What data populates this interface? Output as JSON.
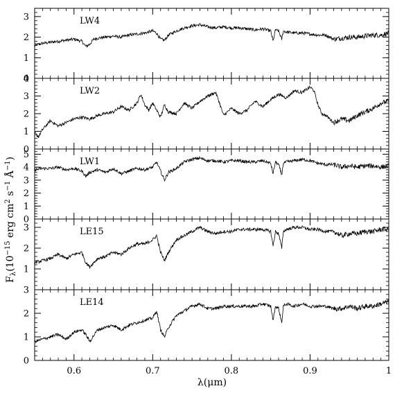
{
  "chart_data": {
    "type": "line",
    "layout": "stacked-panels",
    "x_range": [
      0.55,
      1.0
    ],
    "x_ticks": [
      0.6,
      0.7,
      0.8,
      0.9,
      1.0
    ],
    "x_tick_labels": [
      "0.6",
      "0.7",
      "0.8",
      "0.9",
      "1"
    ],
    "xlabel": "λ(μm)",
    "ylabel": {
      "prefix": "F",
      "subscript": "λ",
      "open": "(10",
      "exp1": "−15",
      "unit1": " erg cm",
      "exp2": "2",
      "unit2": " s",
      "exp3": "−1",
      "unit3": " Å",
      "exp4": "−1",
      "close": ")"
    },
    "panels": [
      {
        "label": "LW4",
        "ylim": [
          0,
          3.4
        ],
        "y_ticks": [
          0,
          1,
          2,
          3
        ],
        "y_tick_labels": [
          "0",
          "1",
          "2",
          "3"
        ],
        "x": [
          0.55,
          0.56,
          0.57,
          0.58,
          0.59,
          0.6,
          0.61,
          0.615,
          0.62,
          0.625,
          0.63,
          0.64,
          0.65,
          0.66,
          0.67,
          0.68,
          0.69,
          0.7,
          0.705,
          0.71,
          0.715,
          0.72,
          0.73,
          0.74,
          0.75,
          0.76,
          0.77,
          0.78,
          0.79,
          0.8,
          0.81,
          0.82,
          0.83,
          0.84,
          0.85,
          0.853,
          0.856,
          0.86,
          0.864,
          0.866,
          0.87,
          0.88,
          0.89,
          0.9,
          0.91,
          0.92,
          0.93,
          0.94,
          0.95,
          0.96,
          0.97,
          0.98,
          0.99,
          1.0
        ],
        "y": [
          1.6,
          1.7,
          1.75,
          1.8,
          1.85,
          1.9,
          1.8,
          1.55,
          1.65,
          1.9,
          1.95,
          2.0,
          2.05,
          2.0,
          2.1,
          2.15,
          2.2,
          2.3,
          2.2,
          1.9,
          1.85,
          2.1,
          2.3,
          2.45,
          2.55,
          2.6,
          2.5,
          2.45,
          2.5,
          2.45,
          2.45,
          2.4,
          2.35,
          2.4,
          2.3,
          1.8,
          2.35,
          2.3,
          1.9,
          2.3,
          2.25,
          2.2,
          2.2,
          2.15,
          2.1,
          2.1,
          1.9,
          1.95,
          2.0,
          2.0,
          2.05,
          2.1,
          2.1,
          2.2
        ]
      },
      {
        "label": "LW2",
        "ylim": [
          0,
          4.0
        ],
        "y_ticks": [
          0,
          1,
          2,
          3,
          4
        ],
        "y_tick_labels": [
          "0",
          "1",
          "2",
          "3",
          "4"
        ],
        "x": [
          0.55,
          0.555,
          0.56,
          0.57,
          0.58,
          0.59,
          0.6,
          0.61,
          0.62,
          0.63,
          0.64,
          0.65,
          0.66,
          0.67,
          0.68,
          0.685,
          0.69,
          0.695,
          0.7,
          0.71,
          0.715,
          0.72,
          0.73,
          0.74,
          0.75,
          0.76,
          0.77,
          0.78,
          0.785,
          0.79,
          0.8,
          0.81,
          0.82,
          0.83,
          0.84,
          0.85,
          0.86,
          0.87,
          0.88,
          0.89,
          0.9,
          0.905,
          0.91,
          0.915,
          0.92,
          0.93,
          0.94,
          0.95,
          0.96,
          0.97,
          0.98,
          0.99,
          1.0
        ],
        "y": [
          0.9,
          0.7,
          1.1,
          1.6,
          1.3,
          1.5,
          1.7,
          1.8,
          1.7,
          1.9,
          2.0,
          2.1,
          2.4,
          2.2,
          2.6,
          3.1,
          2.5,
          2.2,
          2.6,
          1.8,
          2.5,
          2.1,
          2.0,
          2.6,
          2.3,
          2.7,
          3.0,
          3.2,
          2.6,
          1.9,
          2.3,
          2.0,
          2.2,
          2.7,
          2.4,
          2.8,
          3.1,
          2.9,
          3.3,
          3.2,
          3.5,
          3.3,
          2.5,
          2.0,
          1.9,
          1.5,
          1.7,
          1.6,
          1.9,
          2.1,
          2.3,
          2.6,
          2.7
        ]
      },
      {
        "label": "LW1",
        "ylim": [
          0,
          5.4
        ],
        "y_ticks": [
          0,
          1,
          2,
          3,
          4,
          5
        ],
        "y_tick_labels": [
          "0",
          "1",
          "2",
          "3",
          "4",
          "5"
        ],
        "x": [
          0.55,
          0.56,
          0.57,
          0.58,
          0.59,
          0.6,
          0.61,
          0.615,
          0.62,
          0.63,
          0.64,
          0.65,
          0.66,
          0.67,
          0.68,
          0.69,
          0.7,
          0.705,
          0.71,
          0.715,
          0.72,
          0.73,
          0.74,
          0.75,
          0.76,
          0.77,
          0.78,
          0.79,
          0.8,
          0.81,
          0.82,
          0.83,
          0.84,
          0.85,
          0.853,
          0.856,
          0.86,
          0.864,
          0.866,
          0.87,
          0.88,
          0.89,
          0.9,
          0.91,
          0.92,
          0.93,
          0.94,
          0.95,
          0.96,
          0.97,
          0.98,
          0.99,
          1.0
        ],
        "y": [
          3.8,
          3.9,
          3.9,
          4.0,
          3.8,
          3.9,
          3.7,
          3.3,
          3.6,
          3.8,
          3.6,
          3.9,
          3.5,
          3.7,
          3.9,
          3.8,
          4.0,
          4.4,
          3.7,
          3.0,
          3.6,
          3.9,
          4.4,
          4.6,
          4.7,
          4.5,
          4.5,
          4.4,
          4.5,
          4.5,
          4.4,
          4.4,
          4.5,
          4.3,
          3.5,
          4.4,
          4.2,
          3.4,
          4.3,
          4.4,
          4.5,
          4.6,
          4.5,
          4.3,
          4.2,
          4.2,
          4.0,
          4.1,
          4.0,
          4.1,
          4.1,
          4.0,
          4.1
        ]
      },
      {
        "label": "LE15",
        "ylim": [
          0,
          3.4
        ],
        "y_ticks": [
          1,
          2,
          3
        ],
        "y_tick_labels": [
          "1",
          "2",
          "3"
        ],
        "x": [
          0.55,
          0.56,
          0.57,
          0.58,
          0.59,
          0.6,
          0.61,
          0.615,
          0.62,
          0.63,
          0.64,
          0.65,
          0.66,
          0.67,
          0.68,
          0.69,
          0.7,
          0.705,
          0.71,
          0.715,
          0.72,
          0.73,
          0.74,
          0.75,
          0.76,
          0.77,
          0.78,
          0.79,
          0.8,
          0.81,
          0.82,
          0.83,
          0.84,
          0.85,
          0.853,
          0.856,
          0.86,
          0.864,
          0.866,
          0.87,
          0.88,
          0.89,
          0.9,
          0.91,
          0.92,
          0.93,
          0.94,
          0.95,
          0.96,
          0.97,
          0.98,
          0.99,
          1.0
        ],
        "y": [
          1.3,
          1.4,
          1.5,
          1.7,
          1.5,
          1.7,
          1.8,
          1.3,
          1.1,
          1.5,
          1.6,
          1.8,
          1.7,
          2.0,
          2.2,
          2.2,
          2.4,
          2.6,
          1.8,
          1.4,
          1.8,
          2.4,
          2.6,
          2.8,
          3.0,
          2.8,
          2.7,
          2.8,
          2.8,
          2.9,
          2.9,
          2.9,
          2.9,
          2.8,
          2.1,
          2.8,
          2.7,
          2.0,
          2.8,
          2.9,
          3.0,
          3.0,
          2.9,
          2.9,
          2.8,
          2.8,
          2.6,
          2.7,
          2.7,
          2.8,
          2.8,
          2.9,
          2.9
        ]
      },
      {
        "label": "LE14",
        "ylim": [
          0,
          3.0
        ],
        "y_ticks": [
          0,
          1,
          2,
          3
        ],
        "y_tick_labels": [
          "0",
          "1",
          "2",
          "3"
        ],
        "x": [
          0.55,
          0.56,
          0.57,
          0.58,
          0.59,
          0.6,
          0.61,
          0.615,
          0.62,
          0.63,
          0.64,
          0.65,
          0.66,
          0.67,
          0.68,
          0.69,
          0.7,
          0.705,
          0.71,
          0.715,
          0.72,
          0.73,
          0.74,
          0.75,
          0.76,
          0.77,
          0.78,
          0.79,
          0.8,
          0.81,
          0.82,
          0.83,
          0.84,
          0.85,
          0.853,
          0.856,
          0.86,
          0.864,
          0.866,
          0.87,
          0.88,
          0.89,
          0.9,
          0.91,
          0.92,
          0.93,
          0.94,
          0.95,
          0.96,
          0.97,
          0.98,
          0.99,
          1.0
        ],
        "y": [
          0.8,
          0.9,
          1.0,
          1.1,
          0.9,
          1.2,
          1.3,
          1.1,
          0.8,
          1.3,
          1.4,
          1.5,
          1.3,
          1.5,
          1.6,
          1.7,
          1.8,
          2.1,
          1.3,
          1.0,
          1.4,
          1.9,
          2.1,
          2.3,
          2.4,
          2.2,
          2.2,
          2.3,
          2.3,
          2.3,
          2.3,
          2.3,
          2.4,
          2.3,
          1.7,
          2.3,
          2.2,
          1.6,
          2.3,
          2.4,
          2.3,
          2.4,
          2.3,
          2.3,
          2.3,
          2.2,
          2.2,
          2.3,
          2.2,
          2.3,
          2.3,
          2.4,
          2.5
        ]
      }
    ]
  }
}
